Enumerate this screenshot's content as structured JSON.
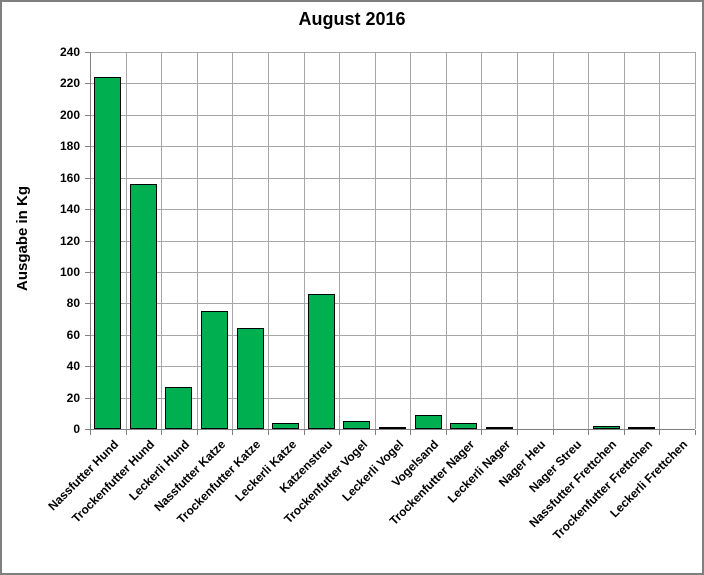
{
  "title": "August 2016",
  "colors": {
    "bar_fill": "#00B050",
    "bar_outline": "#000000",
    "gridline": "#A6A6A6",
    "axis": "#808080",
    "border": "#7F7F7F",
    "text": "#000000",
    "background": "#FFFFFF"
  },
  "chart_data": {
    "type": "bar",
    "title": "August 2016",
    "xlabel": "",
    "ylabel": "Ausgabe in Kg",
    "ylim": [
      0,
      240
    ],
    "ytick_interval": 20,
    "grid": true,
    "legend": false,
    "categories": [
      "Nassfutter Hund",
      "Trockenfutter Hund",
      "Leckerli Hund",
      "Nassfutter Katze",
      "Trockenfutter Katze",
      "Leckerli Katze",
      "Katzenstreu",
      "Trockenfutter Vogel",
      "Leckerli Vogel",
      "Vogelsand",
      "Trockenfutter Nager",
      "Leckerli Nager",
      "Nager Heu",
      "Nager Streu",
      "Nassfutter Frettchen",
      "Trockenfutter Frettchen",
      "Leckerli Frettchen"
    ],
    "values": [
      224,
      156,
      27,
      75,
      64,
      4,
      86,
      5,
      1,
      9,
      4,
      1,
      0,
      0,
      2,
      1.5,
      0
    ]
  }
}
